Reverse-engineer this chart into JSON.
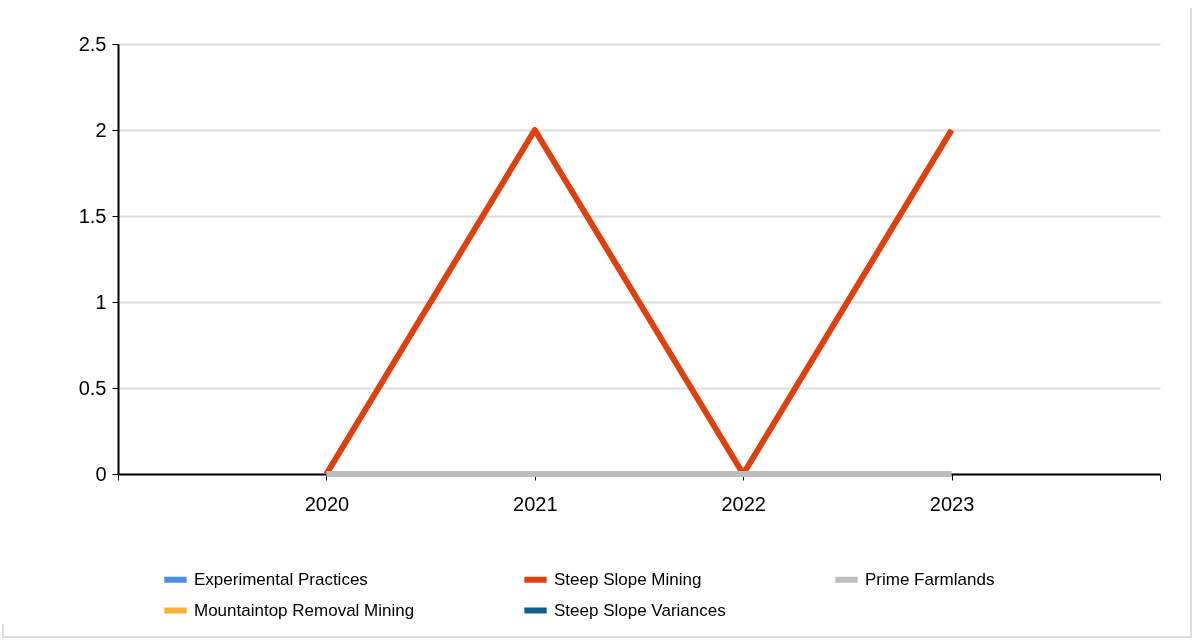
{
  "chart_data": {
    "type": "line",
    "x": [
      2020,
      2021,
      2022,
      2023
    ],
    "xlim": [
      2019,
      2024
    ],
    "xticks": [
      {
        "value": 2019,
        "label": null
      },
      2020,
      2021,
      2022,
      2023,
      {
        "value": 2024,
        "label": null
      }
    ],
    "ylim": [
      0,
      2.5
    ],
    "yticks": [
      0,
      0.5,
      1,
      1.5,
      2,
      2.5
    ],
    "series": [
      {
        "name": "Experimental Practices",
        "color": "#4a90e2",
        "values": [
          null,
          null,
          null,
          null
        ]
      },
      {
        "name": "Steep Slope Mining",
        "color": "#e0400e",
        "values": [
          0,
          2,
          0,
          2
        ]
      },
      {
        "name": "Prime Farmlands",
        "color": "#bdbdbd",
        "values": [
          0,
          0,
          0,
          0
        ]
      },
      {
        "name": "Mountaintop Removal Mining",
        "color": "#fbb034",
        "values": [
          null,
          null,
          null,
          null
        ]
      },
      {
        "name": "Steep Slope Variances",
        "color": "#125d8f",
        "values": [
          null,
          null,
          null,
          null
        ]
      }
    ],
    "grid": "y",
    "legend": "bottom",
    "line_style": "solid"
  }
}
